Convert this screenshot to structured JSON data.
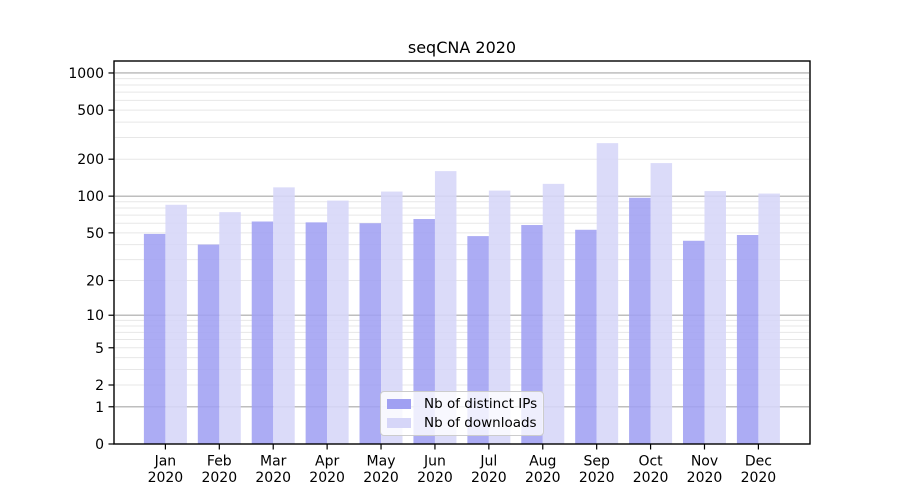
{
  "figure": {
    "title": "seqCNA 2020"
  },
  "legend": {
    "items": [
      {
        "label": "Nb of distinct IPs",
        "color": "#a0a0f2"
      },
      {
        "label": "Nb of downloads",
        "color": "#d6d6f8"
      }
    ]
  },
  "chart_data": {
    "type": "bar",
    "title": "seqCNA 2020",
    "xlabel": "",
    "ylabel": "",
    "yscale": "log1p",
    "ylim": [
      0,
      1250
    ],
    "grid": true,
    "legend_position": "lower center",
    "yticks": [
      0,
      1,
      2,
      5,
      10,
      20,
      50,
      100,
      200,
      500,
      1000
    ],
    "major_grid_values": [
      1,
      10,
      100,
      1000
    ],
    "minor_grid_values": [
      2,
      3,
      4,
      5,
      6,
      7,
      8,
      9,
      20,
      30,
      40,
      50,
      60,
      70,
      80,
      90,
      200,
      300,
      400,
      500,
      600,
      700,
      800,
      900
    ],
    "categories": [
      {
        "month": "Jan",
        "year": "2020"
      },
      {
        "month": "Feb",
        "year": "2020"
      },
      {
        "month": "Mar",
        "year": "2020"
      },
      {
        "month": "Apr",
        "year": "2020"
      },
      {
        "month": "May",
        "year": "2020"
      },
      {
        "month": "Jun",
        "year": "2020"
      },
      {
        "month": "Jul",
        "year": "2020"
      },
      {
        "month": "Aug",
        "year": "2020"
      },
      {
        "month": "Sep",
        "year": "2020"
      },
      {
        "month": "Oct",
        "year": "2020"
      },
      {
        "month": "Nov",
        "year": "2020"
      },
      {
        "month": "Dec",
        "year": "2020"
      }
    ],
    "series": [
      {
        "name": "Nb of distinct IPs",
        "color": "#a0a0f2",
        "values": [
          49,
          40,
          62,
          61,
          60,
          65,
          47,
          58,
          53,
          97,
          43,
          48
        ]
      },
      {
        "name": "Nb of downloads",
        "color": "#d6d6f8",
        "values": [
          85,
          74,
          118,
          92,
          109,
          160,
          111,
          126,
          270,
          186,
          110,
          105
        ]
      }
    ]
  }
}
